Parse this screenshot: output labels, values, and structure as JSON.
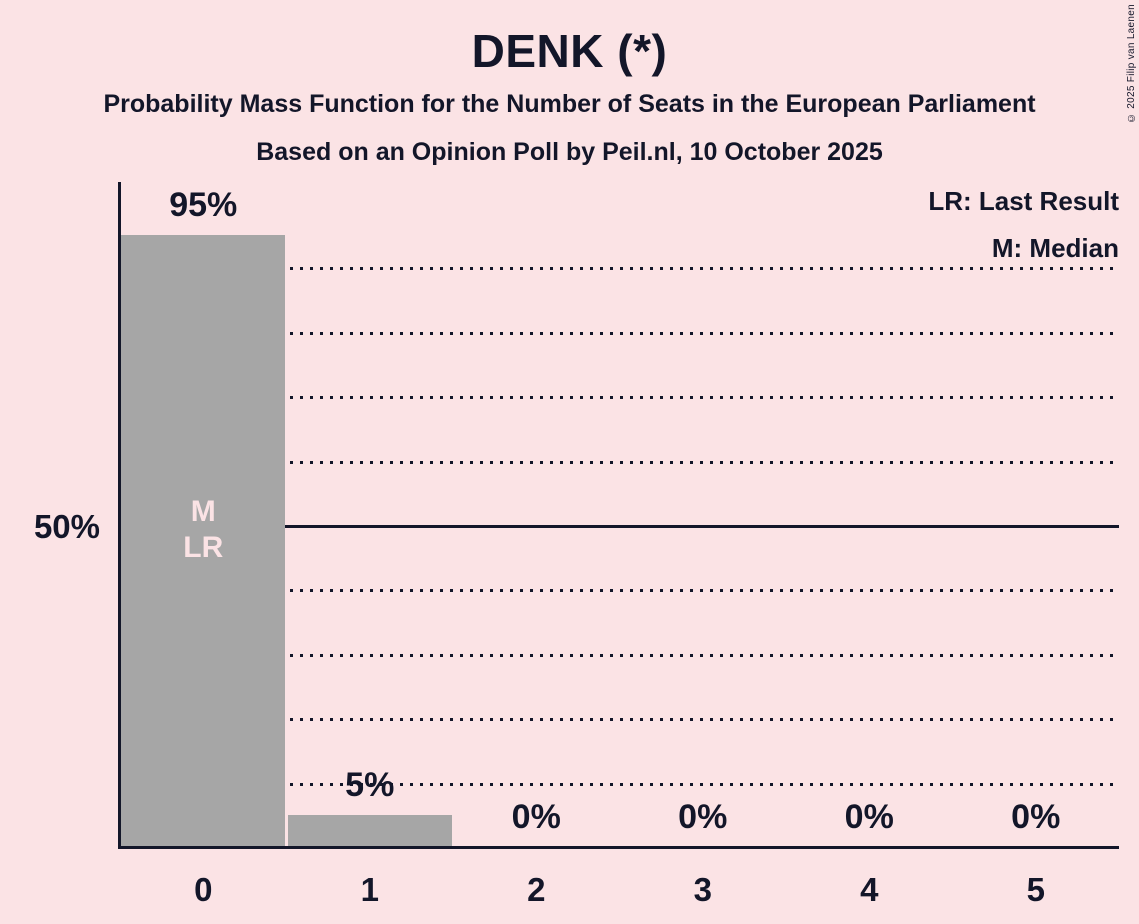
{
  "title": "DENK (*)",
  "subtitle": "Probability Mass Function for the Number of Seats in the European Parliament",
  "poll_info": "Based on an Opinion Poll by Peil.nl, 10 October 2025",
  "copyright": "© 2025 Filip van Laenen",
  "legend": {
    "last_result": "LR: Last Result",
    "median": "M: Median"
  },
  "y_axis": {
    "label": "50%"
  },
  "chart_data": {
    "type": "bar",
    "title": "DENK (*)",
    "categories": [
      "0",
      "1",
      "2",
      "3",
      "4",
      "5"
    ],
    "values": [
      95,
      5,
      0,
      0,
      0,
      0
    ],
    "value_labels": [
      "95%",
      "5%",
      "0%",
      "0%",
      "0%",
      "0%"
    ],
    "bar_annotations": [
      [
        "M",
        "LR"
      ],
      [],
      [],
      [],
      [],
      []
    ],
    "annotation_meanings": {
      "M": "Median",
      "LR": "Last Result"
    },
    "ylim": [
      0,
      100
    ],
    "gridlines": {
      "dotted": [
        90,
        80,
        70,
        60,
        40,
        30,
        20,
        10
      ],
      "solid": 50
    },
    "legend_position": "top-right",
    "colors": {
      "background": "#fbe3e5",
      "bar": "#a6a6a6",
      "text": "#131629",
      "bar_annotation": "#fbe3e5"
    }
  }
}
